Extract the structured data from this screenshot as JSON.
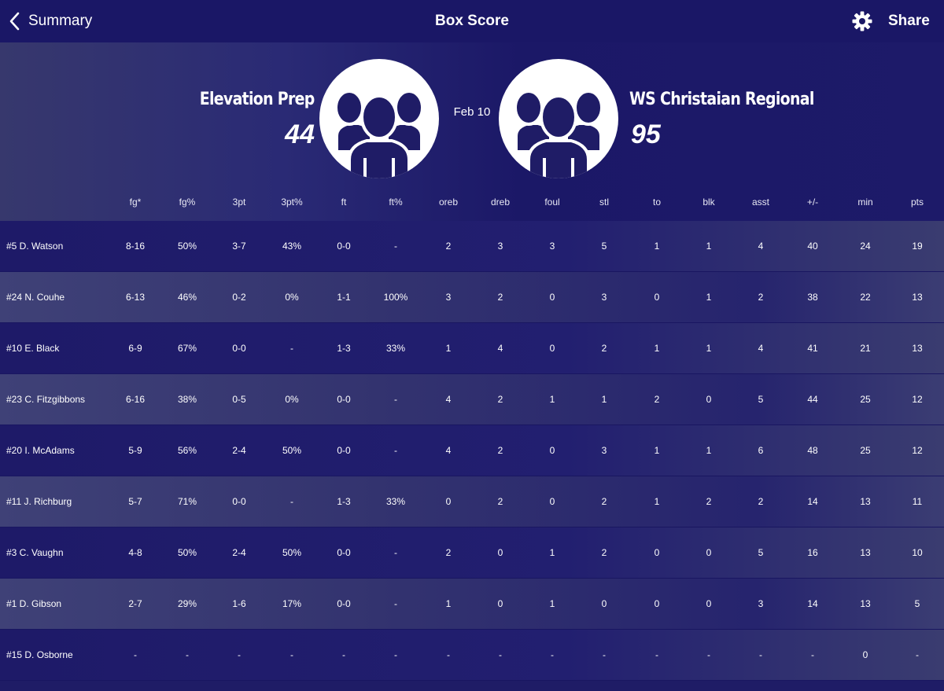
{
  "nav": {
    "back_label": "Summary",
    "title": "Box Score",
    "share_label": "Share"
  },
  "game": {
    "date": "Feb 10",
    "home": {
      "name": "Elevation Prep",
      "score": "44"
    },
    "away": {
      "name": "WS Christaian Regional",
      "score": "95"
    }
  },
  "columns": [
    "fg*",
    "fg%",
    "3pt",
    "3pt%",
    "ft",
    "ft%",
    "oreb",
    "dreb",
    "foul",
    "stl",
    "to",
    "blk",
    "asst",
    "+/-",
    "min",
    "pts"
  ],
  "players": [
    {
      "name": "#5 D. Watson",
      "stats": [
        "8-16",
        "50%",
        "3-7",
        "43%",
        "0-0",
        "-",
        "2",
        "3",
        "3",
        "5",
        "1",
        "1",
        "4",
        "40",
        "24",
        "19"
      ]
    },
    {
      "name": "#24 N. Couhe",
      "stats": [
        "6-13",
        "46%",
        "0-2",
        "0%",
        "1-1",
        "100%",
        "3",
        "2",
        "0",
        "3",
        "0",
        "1",
        "2",
        "38",
        "22",
        "13"
      ]
    },
    {
      "name": "#10 E. Black",
      "stats": [
        "6-9",
        "67%",
        "0-0",
        "-",
        "1-3",
        "33%",
        "1",
        "4",
        "0",
        "2",
        "1",
        "1",
        "4",
        "41",
        "21",
        "13"
      ]
    },
    {
      "name": "#23 C. Fitzgibbons",
      "stats": [
        "6-16",
        "38%",
        "0-5",
        "0%",
        "0-0",
        "-",
        "4",
        "2",
        "1",
        "1",
        "2",
        "0",
        "5",
        "44",
        "25",
        "12"
      ]
    },
    {
      "name": "#20 I. McAdams",
      "stats": [
        "5-9",
        "56%",
        "2-4",
        "50%",
        "0-0",
        "-",
        "4",
        "2",
        "0",
        "3",
        "1",
        "1",
        "6",
        "48",
        "25",
        "12"
      ]
    },
    {
      "name": "#11 J. Richburg",
      "stats": [
        "5-7",
        "71%",
        "0-0",
        "-",
        "1-3",
        "33%",
        "0",
        "2",
        "0",
        "2",
        "1",
        "2",
        "2",
        "14",
        "13",
        "11"
      ]
    },
    {
      "name": "#3 C. Vaughn",
      "stats": [
        "4-8",
        "50%",
        "2-4",
        "50%",
        "0-0",
        "-",
        "2",
        "0",
        "1",
        "2",
        "0",
        "0",
        "5",
        "16",
        "13",
        "10"
      ]
    },
    {
      "name": "#1 D. Gibson",
      "stats": [
        "2-7",
        "29%",
        "1-6",
        "17%",
        "0-0",
        "-",
        "1",
        "0",
        "1",
        "0",
        "0",
        "0",
        "3",
        "14",
        "13",
        "5"
      ]
    },
    {
      "name": "#15 D. Osborne",
      "stats": [
        "-",
        "-",
        "-",
        "-",
        "-",
        "-",
        "-",
        "-",
        "-",
        "-",
        "-",
        "-",
        "-",
        "-",
        "0",
        "-"
      ]
    }
  ]
}
